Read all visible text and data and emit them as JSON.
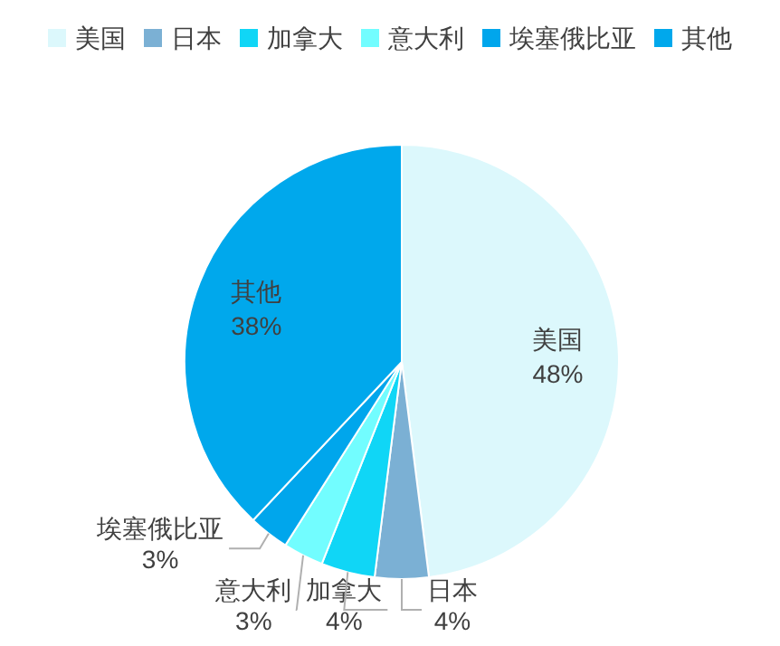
{
  "chart_data": {
    "type": "pie",
    "categories": [
      "美国",
      "日本",
      "加拿大",
      "意大利",
      "埃塞俄比亚",
      "其他"
    ],
    "values": [
      48,
      4,
      4,
      3,
      3,
      38
    ],
    "value_labels": [
      "48%",
      "4%",
      "4%",
      "3%",
      "3%",
      "38%"
    ],
    "colors": [
      "#dcf8fc",
      "#7bb0d4",
      "#10d6f6",
      "#72fdff",
      "#00a6ec",
      "#00a8ec"
    ],
    "legend": "top"
  }
}
